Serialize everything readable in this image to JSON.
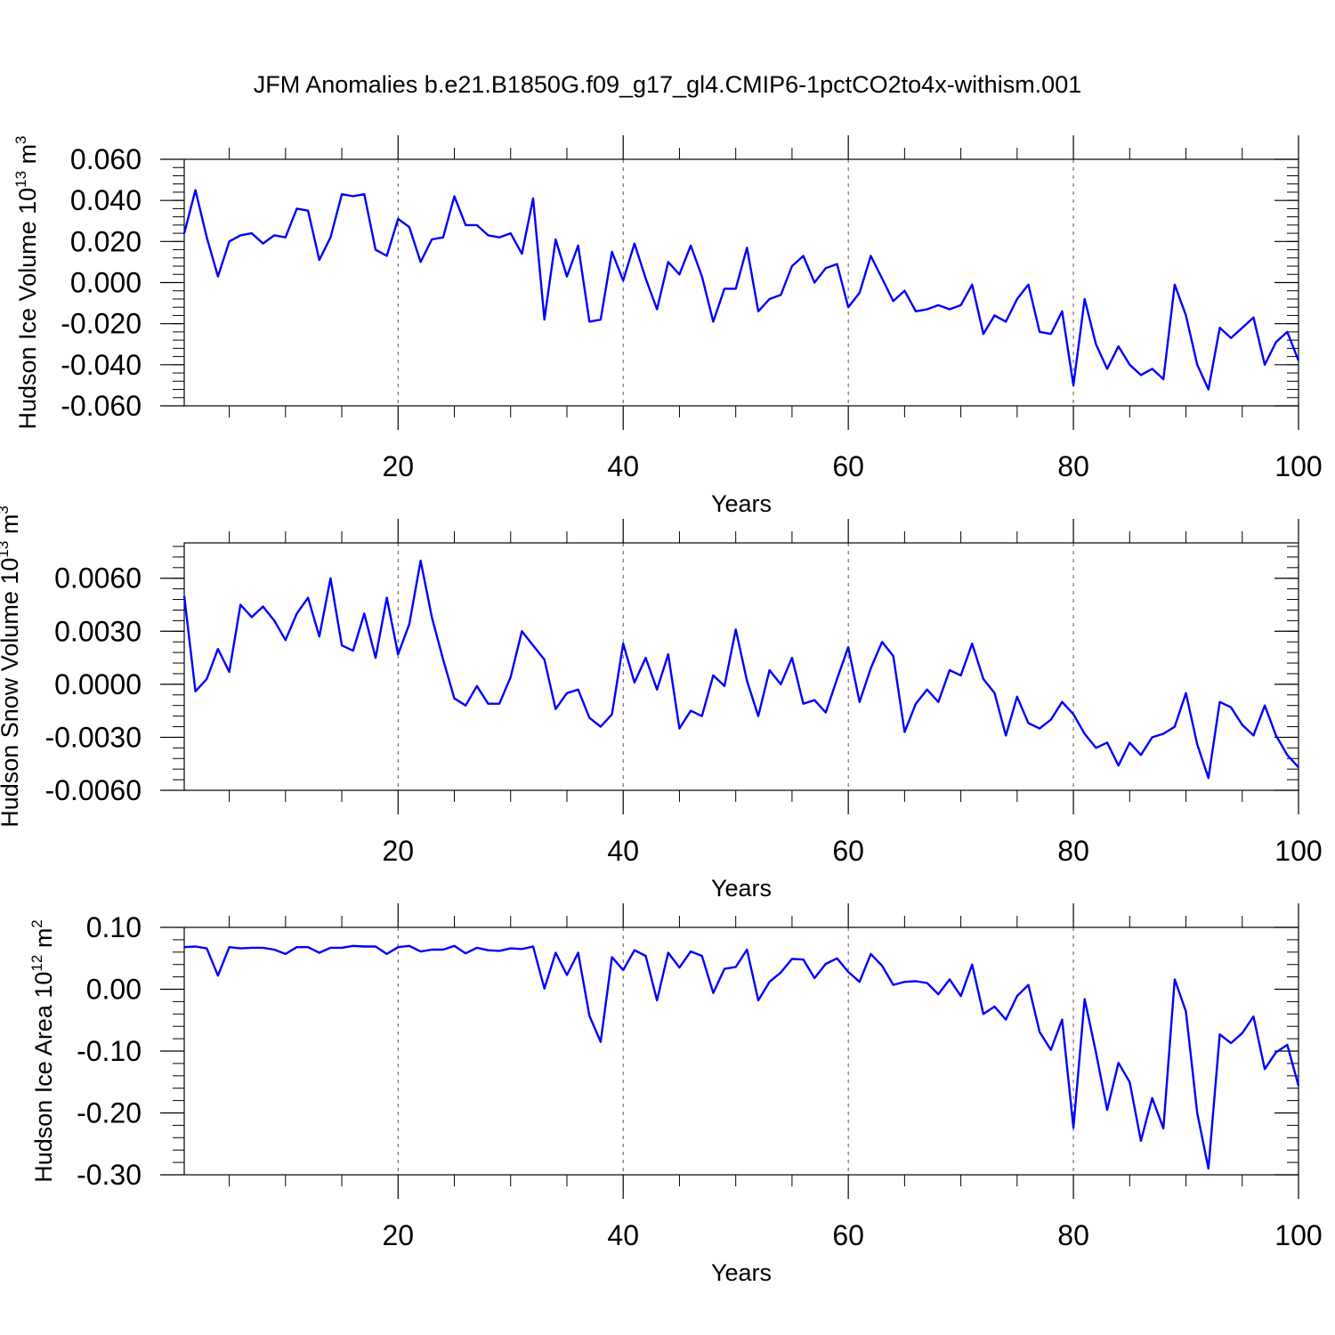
{
  "title": "JFM Anomalies b.e21.B1850G.f09_g17_gl4.CMIP6-1pctCO2to4x-withism.001",
  "chart_data": [
    {
      "type": "line",
      "ylabel": {
        "main": "Hudson Ice Volume 10",
        "exp": "13",
        "unit": " m",
        "unit_exp": "3"
      },
      "xlabel": "Years",
      "xlim": [
        1,
        100
      ],
      "ylim": [
        -0.06,
        0.06
      ],
      "yticks": [
        -0.06,
        -0.04,
        -0.02,
        0.0,
        0.02,
        0.04,
        0.06
      ],
      "ytick_labels": [
        "-0.060",
        "-0.040",
        "-0.020",
        "0.000",
        "0.020",
        "0.040",
        "0.060"
      ],
      "xticks": [
        20,
        40,
        60,
        80,
        100
      ],
      "xtick_labels": [
        "20",
        "40",
        "60",
        "80",
        "100"
      ],
      "series_color": "#0000ff",
      "x": [
        1,
        2,
        3,
        4,
        5,
        6,
        7,
        8,
        9,
        10,
        11,
        12,
        13,
        14,
        15,
        16,
        17,
        18,
        19,
        20,
        21,
        22,
        23,
        24,
        25,
        26,
        27,
        28,
        29,
        30,
        31,
        32,
        33,
        34,
        35,
        36,
        37,
        38,
        39,
        40,
        41,
        42,
        43,
        44,
        45,
        46,
        47,
        48,
        49,
        50,
        51,
        52,
        53,
        54,
        55,
        56,
        57,
        58,
        59,
        60,
        61,
        62,
        63,
        64,
        65,
        66,
        67,
        68,
        69,
        70,
        71,
        72,
        73,
        74,
        75,
        76,
        77,
        78,
        79,
        80,
        81,
        82,
        83,
        84,
        85,
        86,
        87,
        88,
        89,
        90,
        91,
        92,
        93,
        94,
        95,
        96,
        97,
        98,
        99,
        100
      ],
      "values": [
        0.024,
        0.045,
        0.022,
        0.003,
        0.02,
        0.023,
        0.024,
        0.019,
        0.023,
        0.022,
        0.036,
        0.035,
        0.011,
        0.022,
        0.043,
        0.042,
        0.043,
        0.016,
        0.013,
        0.031,
        0.027,
        0.01,
        0.021,
        0.022,
        0.042,
        0.028,
        0.028,
        0.023,
        0.022,
        0.024,
        0.014,
        0.041,
        -0.018,
        0.021,
        0.003,
        0.018,
        -0.019,
        -0.018,
        0.015,
        0.001,
        0.019,
        0.002,
        -0.013,
        0.01,
        0.004,
        0.018,
        0.003,
        -0.019,
        -0.003,
        -0.003,
        0.017,
        -0.014,
        -0.008,
        -0.006,
        0.008,
        0.013,
        0.0,
        0.007,
        0.009,
        -0.012,
        -0.005,
        0.013,
        0.002,
        -0.009,
        -0.004,
        -0.014,
        -0.013,
        -0.011,
        -0.013,
        -0.011,
        -0.001,
        -0.025,
        -0.016,
        -0.019,
        -0.008,
        -0.001,
        -0.024,
        -0.025,
        -0.014,
        -0.05,
        -0.008,
        -0.03,
        -0.042,
        -0.031,
        -0.04,
        -0.045,
        -0.042,
        -0.047,
        -0.001,
        -0.016,
        -0.04,
        -0.052,
        -0.022,
        -0.027,
        -0.022,
        -0.017,
        -0.04,
        -0.029,
        -0.024,
        -0.038
      ]
    },
    {
      "type": "line",
      "ylabel": {
        "main": "Hudson Snow Volume 10",
        "exp": "13",
        "unit": " m",
        "unit_exp": "3"
      },
      "xlabel": "Years",
      "xlim": [
        1,
        100
      ],
      "ylim": [
        -0.006,
        0.008
      ],
      "yticks": [
        -0.006,
        -0.003,
        0.0,
        0.003,
        0.006
      ],
      "ytick_labels": [
        "-0.0060",
        "-0.0030",
        "0.0000",
        "0.0030",
        "0.0060"
      ],
      "xticks": [
        20,
        40,
        60,
        80,
        100
      ],
      "xtick_labels": [
        "20",
        "40",
        "60",
        "80",
        "100"
      ],
      "series_color": "#0000ff",
      "x": [
        1,
        2,
        3,
        4,
        5,
        6,
        7,
        8,
        9,
        10,
        11,
        12,
        13,
        14,
        15,
        16,
        17,
        18,
        19,
        20,
        21,
        22,
        23,
        24,
        25,
        26,
        27,
        28,
        29,
        30,
        31,
        32,
        33,
        34,
        35,
        36,
        37,
        38,
        39,
        40,
        41,
        42,
        43,
        44,
        45,
        46,
        47,
        48,
        49,
        50,
        51,
        52,
        53,
        54,
        55,
        56,
        57,
        58,
        59,
        60,
        61,
        62,
        63,
        64,
        65,
        66,
        67,
        68,
        69,
        70,
        71,
        72,
        73,
        74,
        75,
        76,
        77,
        78,
        79,
        80,
        81,
        82,
        83,
        84,
        85,
        86,
        87,
        88,
        89,
        90,
        91,
        92,
        93,
        94,
        95,
        96,
        97,
        98,
        99,
        100
      ],
      "values": [
        0.005,
        -0.0004,
        0.0003,
        0.002,
        0.0007,
        0.0045,
        0.0038,
        0.0044,
        0.0036,
        0.0025,
        0.004,
        0.0049,
        0.0027,
        0.006,
        0.0022,
        0.0019,
        0.004,
        0.0015,
        0.0049,
        0.0017,
        0.0034,
        0.007,
        0.0038,
        0.0014,
        -0.0008,
        -0.0012,
        -0.0001,
        -0.0011,
        -0.0011,
        0.0004,
        0.003,
        0.0022,
        0.0014,
        -0.0014,
        -0.0005,
        -0.0003,
        -0.0019,
        -0.0024,
        -0.0017,
        0.0023,
        0.0001,
        0.0015,
        -0.0003,
        0.0017,
        -0.0025,
        -0.0015,
        -0.0018,
        0.0005,
        -0.0001,
        0.0031,
        0.0002,
        -0.0018,
        0.0008,
        0.0,
        0.0015,
        -0.0011,
        -0.0009,
        -0.0016,
        0.0003,
        0.0021,
        -0.001,
        0.0009,
        0.0024,
        0.0016,
        -0.0027,
        -0.0011,
        -0.0003,
        -0.001,
        0.0008,
        0.0005,
        0.0023,
        0.0003,
        -0.0005,
        -0.0029,
        -0.0007,
        -0.0022,
        -0.0025,
        -0.002,
        -0.001,
        -0.0017,
        -0.0028,
        -0.0036,
        -0.0033,
        -0.0046,
        -0.0033,
        -0.004,
        -0.003,
        -0.0028,
        -0.0024,
        -0.0005,
        -0.0034,
        -0.0053,
        -0.001,
        -0.0013,
        -0.0023,
        -0.0029,
        -0.0012,
        -0.0029,
        -0.004,
        -0.0047
      ]
    },
    {
      "type": "line",
      "ylabel": {
        "main": "Hudson Ice Area 10",
        "exp": "12",
        "unit": " m",
        "unit_exp": "2"
      },
      "xlabel": "Years",
      "xlim": [
        1,
        100
      ],
      "ylim": [
        -0.3,
        0.1
      ],
      "yticks": [
        -0.3,
        -0.2,
        -0.1,
        0.0,
        0.1
      ],
      "ytick_labels": [
        "-0.30",
        "-0.20",
        "-0.10",
        "0.00",
        "0.10"
      ],
      "xticks": [
        20,
        40,
        60,
        80,
        100
      ],
      "xtick_labels": [
        "20",
        "40",
        "60",
        "80",
        "100"
      ],
      "series_color": "#0000ff",
      "x": [
        1,
        2,
        3,
        4,
        5,
        6,
        7,
        8,
        9,
        10,
        11,
        12,
        13,
        14,
        15,
        16,
        17,
        18,
        19,
        20,
        21,
        22,
        23,
        24,
        25,
        26,
        27,
        28,
        29,
        30,
        31,
        32,
        33,
        34,
        35,
        36,
        37,
        38,
        39,
        40,
        41,
        42,
        43,
        44,
        45,
        46,
        47,
        48,
        49,
        50,
        51,
        52,
        53,
        54,
        55,
        56,
        57,
        58,
        59,
        60,
        61,
        62,
        63,
        64,
        65,
        66,
        67,
        68,
        69,
        70,
        71,
        72,
        73,
        74,
        75,
        76,
        77,
        78,
        79,
        80,
        81,
        82,
        83,
        84,
        85,
        86,
        87,
        88,
        89,
        90,
        91,
        92,
        93,
        94,
        95,
        96,
        97,
        98,
        99,
        100
      ],
      "values": [
        0.068,
        0.069,
        0.066,
        0.022,
        0.068,
        0.066,
        0.067,
        0.067,
        0.064,
        0.057,
        0.068,
        0.068,
        0.059,
        0.067,
        0.067,
        0.07,
        0.069,
        0.069,
        0.057,
        0.068,
        0.07,
        0.061,
        0.064,
        0.064,
        0.07,
        0.058,
        0.067,
        0.063,
        0.062,
        0.066,
        0.065,
        0.069,
        0.001,
        0.059,
        0.023,
        0.059,
        -0.043,
        -0.085,
        0.052,
        0.031,
        0.063,
        0.054,
        -0.018,
        0.059,
        0.035,
        0.061,
        0.054,
        -0.006,
        0.033,
        0.036,
        0.064,
        -0.018,
        0.012,
        0.027,
        0.049,
        0.048,
        0.018,
        0.041,
        0.05,
        0.028,
        0.012,
        0.057,
        0.038,
        0.007,
        0.012,
        0.013,
        0.01,
        -0.008,
        0.016,
        -0.011,
        0.04,
        -0.04,
        -0.028,
        -0.049,
        -0.011,
        0.007,
        -0.069,
        -0.098,
        -0.049,
        -0.224,
        -0.016,
        -0.102,
        -0.195,
        -0.119,
        -0.15,
        -0.245,
        -0.176,
        -0.225,
        0.016,
        -0.036,
        -0.2,
        -0.29,
        -0.073,
        -0.087,
        -0.071,
        -0.044,
        -0.129,
        -0.102,
        -0.09,
        -0.156
      ]
    }
  ]
}
